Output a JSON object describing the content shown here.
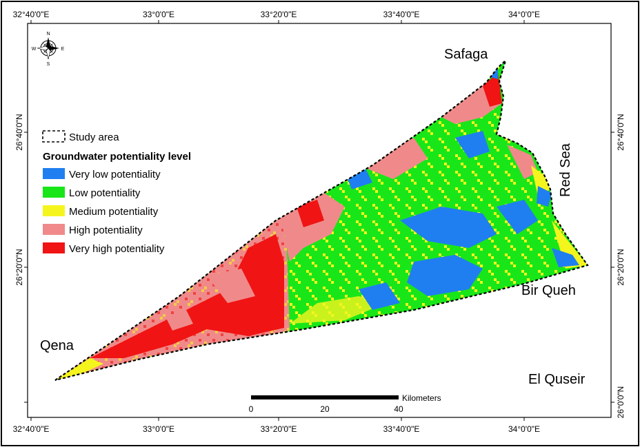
{
  "map": {
    "top_ticks": [
      "32°40'0\"E",
      "33°0'0\"E",
      "33°20'0\"E",
      "33°40'0\"E",
      "34°0'0\"E"
    ],
    "bottom_ticks": [
      "32°40'0\"E",
      "33°0'0\"E",
      "33°20'0\"E",
      "33°40'0\"E",
      "34°0'0\"E"
    ],
    "left_ticks": [
      "26°40'0\"N",
      "26°20'0\"N"
    ],
    "right_ticks": [
      "26°40'0\"N",
      "26°20'0\"N",
      "26°0'0\"N"
    ],
    "place_labels": {
      "safaga": "Safaga",
      "red_sea": "Red Sea",
      "bir_queh": "Bir Queh",
      "qena": "Qena",
      "el_quseir": "El Quseir"
    },
    "north_arrow": {
      "n": "N",
      "s": "S",
      "e": "E",
      "w": "W"
    },
    "legend": {
      "study_area": "Study area",
      "title": "Groundwater potentiality level",
      "classes": [
        {
          "label": "Very low potentiality",
          "color": "#1f7ff0"
        },
        {
          "label": "Low potentiality",
          "color": "#19e619"
        },
        {
          "label": "Medium potentiality",
          "color": "#f5f51e"
        },
        {
          "label": "High potentiality",
          "color": "#f08a8a"
        },
        {
          "label": "Very high potentiality",
          "color": "#f01414"
        }
      ]
    },
    "scale_bar": {
      "unit": "Kilometers",
      "labels": [
        "0",
        "20",
        "40"
      ]
    }
  }
}
